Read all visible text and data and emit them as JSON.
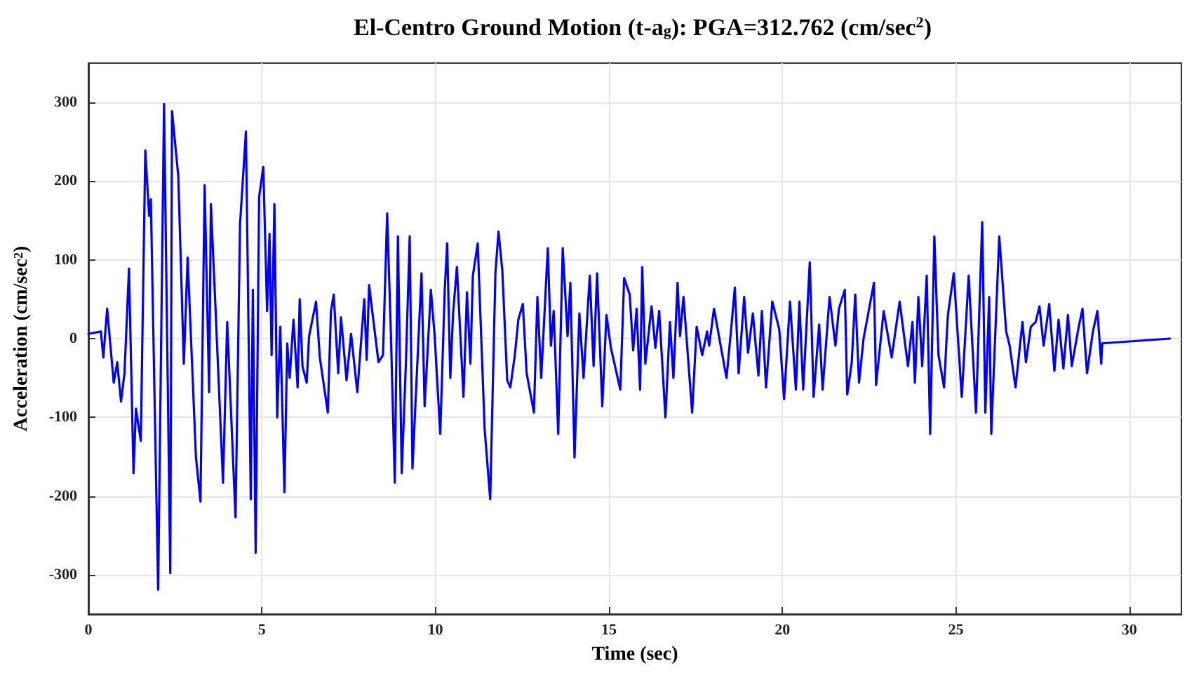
{
  "chart_data": {
    "type": "line",
    "title": "El-Centro Ground Motion (t-a$_{g}$): PGA=312.762 (cm/sec$^{2}$)",
    "xlabel": "Time (sec)",
    "ylabel": "Acceleration (cm/sec$^{2}$)",
    "x": [
      0,
      0.36,
      0.43,
      0.54,
      0.73,
      0.83,
      0.94,
      1.04,
      1.17,
      1.3,
      1.37,
      1.51,
      1.64,
      1.75,
      1.8,
      2.01,
      2.18,
      2.36,
      2.41,
      2.59,
      2.75,
      2.86,
      3.1,
      3.23,
      3.35,
      3.48,
      3.53,
      3.64,
      3.88,
      4,
      4.24,
      4.37,
      4.54,
      4.68,
      4.74,
      4.82,
      4.92,
      5.04,
      5.15,
      5.22,
      5.28,
      5.36,
      5.44,
      5.53,
      5.65,
      5.73,
      5.8,
      5.91,
      6.03,
      6.09,
      6.17,
      6.29,
      6.36,
      6.56,
      6.67,
      6.9,
      6.99,
      7.07,
      7.2,
      7.28,
      7.44,
      7.57,
      7.75,
      7.95,
      8.02,
      8.09,
      8.18,
      8.36,
      8.49,
      8.61,
      8.72,
      8.83,
      8.92,
      9.03,
      9.15,
      9.26,
      9.34,
      9.6,
      9.69,
      9.87,
      9.98,
      10.14,
      10.27,
      10.34,
      10.43,
      10.51,
      10.62,
      10.81,
      10.91,
      11.01,
      11.08,
      11.22,
      11.42,
      11.58,
      11.73,
      11.82,
      11.93,
      12.07,
      12.16,
      12.29,
      12.39,
      12.52,
      12.63,
      12.84,
      12.94,
      13.05,
      13.24,
      13.33,
      13.41,
      13.54,
      13.67,
      13.81,
      13.89,
      14.01,
      14.15,
      14.27,
      14.45,
      14.56,
      14.66,
      14.81,
      14.93,
      15.06,
      15.33,
      15.44,
      15.6,
      15.7,
      15.8,
      15.9,
      15.96,
      16.05,
      16.23,
      16.34,
      16.45,
      16.63,
      16.76,
      16.86,
      16.98,
      17.05,
      17.15,
      17.4,
      17.53,
      17.69,
      17.83,
      17.89,
      18.03,
      18.39,
      18.53,
      18.63,
      18.74,
      18.9,
      19.01,
      19.15,
      19.31,
      19.41,
      19.53,
      19.71,
      19.91,
      20.05,
      20.22,
      20.39,
      20.49,
      20.6,
      20.79,
      20.9,
      21.06,
      21.16,
      21.36,
      21.53,
      21.63,
      21.8,
      21.87,
      22,
      22.1,
      22.21,
      22.34,
      22.64,
      22.7,
      22.92,
      23.15,
      23.38,
      23.62,
      23.75,
      23.82,
      23.92,
      24.03,
      24.16,
      24.26,
      24.38,
      24.5,
      24.66,
      24.77,
      24.94,
      25.17,
      25.37,
      25.58,
      25.76,
      25.85,
      25.96,
      26.02,
      26.25,
      26.45,
      26.55,
      26.72,
      26.92,
      27.02,
      27.16,
      27.3,
      27.41,
      27.53,
      27.69,
      27.84,
      27.96,
      28.1,
      28.23,
      28.34,
      28.54,
      28.65,
      28.78,
      28.95,
      29.08,
      29.19,
      29.22,
      31.17
    ],
    "series": [
      {
        "color": "#0000ff",
        "values": [
          6,
          9,
          -24,
          38,
          -56,
          -30,
          -80,
          -44,
          89,
          -171,
          -89,
          -130,
          239,
          156,
          177,
          -319,
          298,
          -298,
          289,
          207,
          -32,
          103,
          -151,
          -207,
          195,
          -68,
          171,
          62,
          -183,
          21,
          -227,
          145,
          263,
          -204,
          62,
          -272,
          180,
          218,
          35,
          133,
          -21,
          171,
          -100,
          15,
          -195,
          -6,
          -50,
          24,
          -62,
          50,
          -35,
          -56,
          3,
          47,
          -24,
          -94,
          35,
          56,
          -44,
          27,
          -53,
          6,
          -68,
          50,
          -27,
          68,
          35,
          -30,
          -21,
          159,
          3,
          -183,
          130,
          -171,
          -32,
          130,
          -165,
          83,
          -86,
          62,
          3,
          -121,
          62,
          121,
          -50,
          32,
          91,
          -74,
          59,
          -32,
          80,
          121,
          -115,
          -204,
          83,
          136,
          86,
          -53,
          -62,
          -21,
          24,
          44,
          -44,
          -94,
          53,
          -50,
          115,
          -9,
          35,
          -121,
          115,
          3,
          71,
          -151,
          32,
          -50,
          80,
          -35,
          83,
          -86,
          30,
          -12,
          -65,
          77,
          56,
          -15,
          38,
          -65,
          91,
          -32,
          41,
          -12,
          35,
          -100,
          21,
          -50,
          71,
          3,
          53,
          -94,
          15,
          -21,
          9,
          -9,
          38,
          -50,
          15,
          65,
          -44,
          53,
          -18,
          32,
          -47,
          35,
          -62,
          47,
          12,
          -77,
          47,
          -65,
          47,
          -65,
          97,
          -74,
          18,
          -65,
          53,
          -9,
          38,
          62,
          -71,
          -30,
          56,
          -56,
          0,
          71,
          -59,
          35,
          -24,
          47,
          -35,
          21,
          -56,
          53,
          -35,
          80,
          -121,
          130,
          -21,
          -62,
          30,
          83,
          -74,
          80,
          -94,
          148,
          -94,
          53,
          -121,
          130,
          9,
          -9,
          -62,
          21,
          -30,
          15,
          21,
          41,
          -9,
          44,
          -41,
          24,
          -38,
          30,
          -35,
          15,
          38,
          -44,
          9,
          35,
          -32,
          -6,
          0
        ]
      }
    ],
    "xlim": [
      0,
      31.5
    ],
    "ylim": [
      -350,
      350
    ],
    "xticks": [
      0,
      5,
      10,
      15,
      20,
      25,
      30
    ],
    "yticks": [
      -300,
      -200,
      -100,
      0,
      100,
      200,
      300
    ],
    "grid": true,
    "marker": "none",
    "line_style": "solid"
  }
}
